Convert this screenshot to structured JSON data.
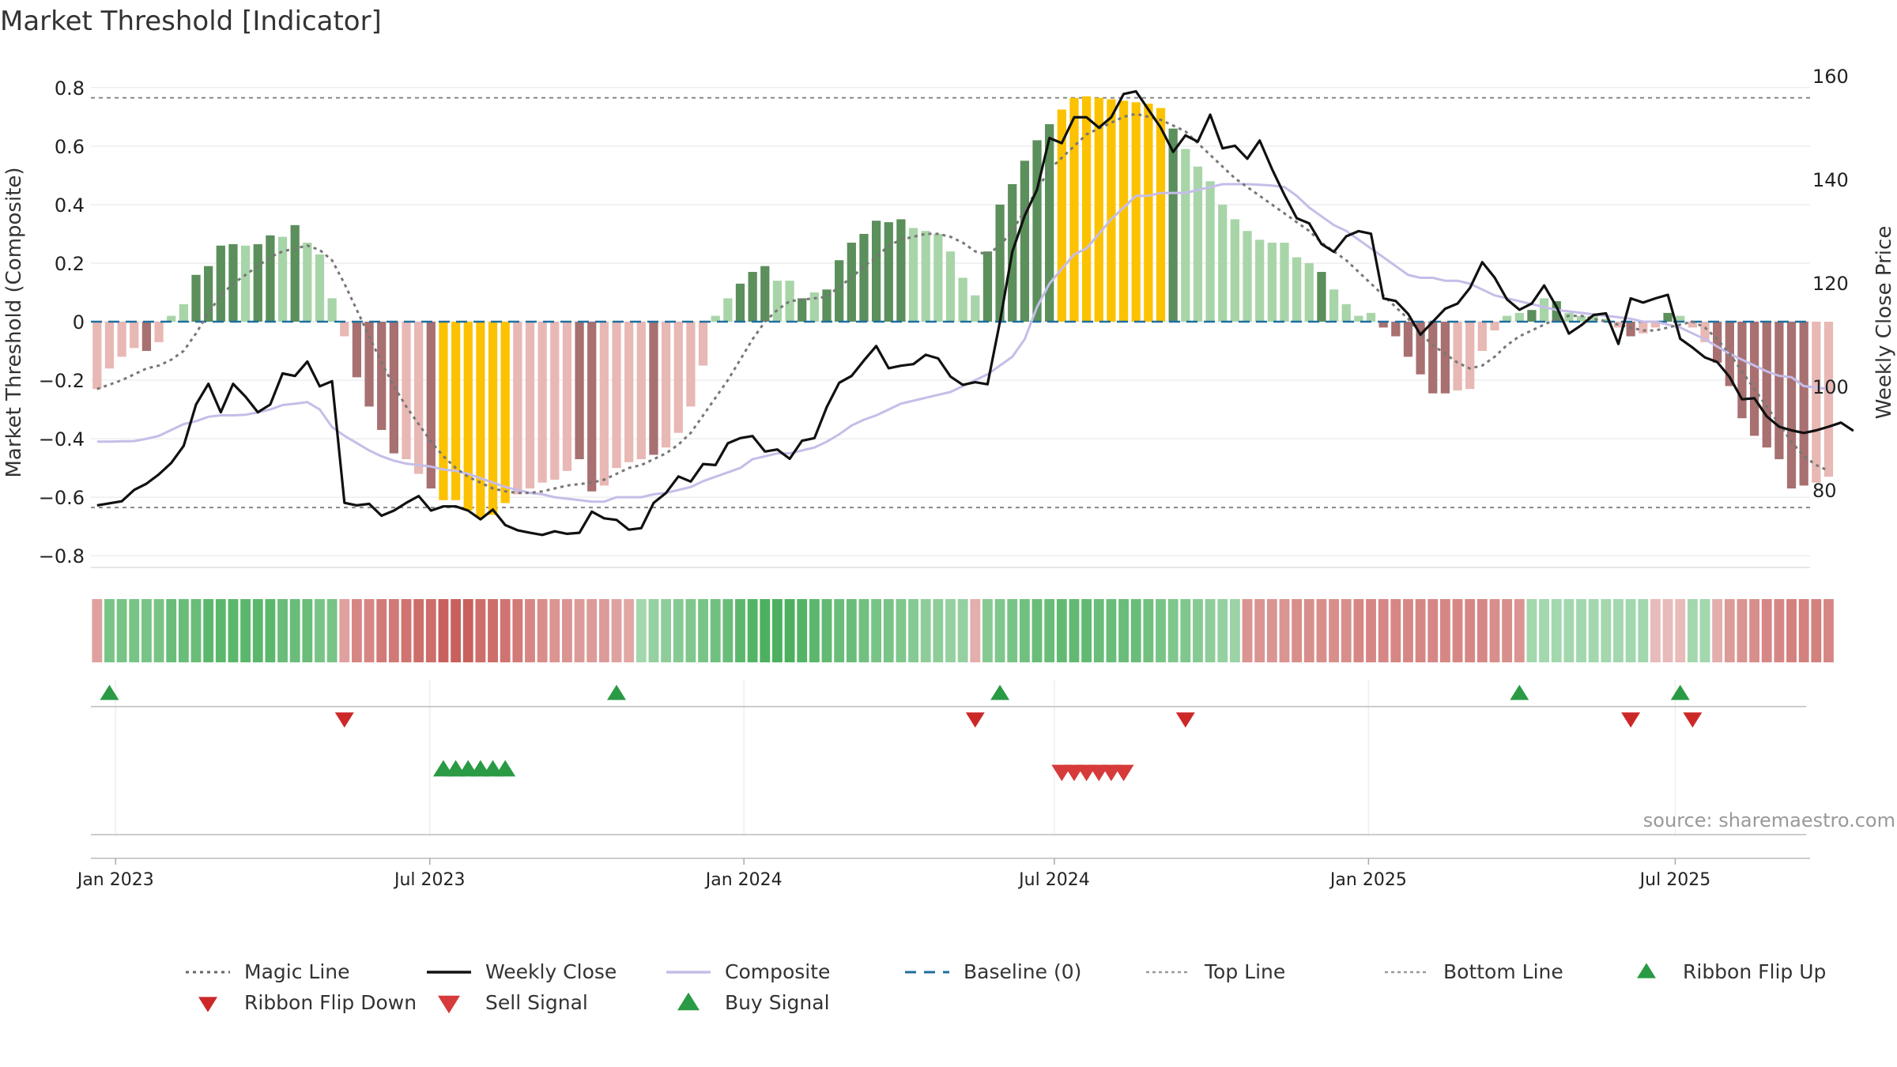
{
  "chart_data": {
    "type": "bar",
    "title": "Market Threshold [Indicator]",
    "ylabel": "Market Threshold (Composite)",
    "y2label": "Weekly Close Price",
    "ylim": [
      -0.84,
      0.84
    ],
    "y2lim": [
      65,
      160
    ],
    "yticks": [
      0.8,
      0.6,
      0.4,
      0.2,
      0,
      -0.2,
      -0.4,
      -0.6,
      -0.8
    ],
    "ytick_labels": [
      "0.8",
      "0.6",
      "0.4",
      "0.2",
      "0",
      "−0.2",
      "−0.4",
      "−0.6",
      "−0.8"
    ],
    "y2ticks": [
      160,
      140,
      120,
      100,
      80
    ],
    "y2tick_labels": [
      "160",
      "140",
      "120",
      "100",
      "80"
    ],
    "x_weeks_total": 139,
    "x_start": "2022-12-16",
    "xticks": [
      {
        "label": "Jan 2023",
        "week": 2
      },
      {
        "label": "Jul 2023",
        "week": 27.4
      },
      {
        "label": "Jan 2024",
        "week": 52.8
      },
      {
        "label": "Jul 2024",
        "week": 77.9
      },
      {
        "label": "Jan 2025",
        "week": 103.3
      },
      {
        "label": "Jul 2025",
        "week": 128.1
      }
    ],
    "top_line": 0.765,
    "bottom_line": -0.635,
    "source": "source: sharemaestro.com",
    "colors": {
      "strong_pos": "#5b8f5b",
      "light_pos": "#a8d5a8",
      "strong_neg": "#a87070",
      "light_neg": "#e8b8b4",
      "extreme": "#fcc200",
      "close": "#111111",
      "composite": "#c5bde8",
      "magic": "#777777",
      "baseline": "#1f6f9f",
      "buy": "#2a9a44",
      "sell": "#d63a3a",
      "flip_up": "#2a9a44",
      "flip_down": "#cc2828"
    },
    "bar_values": [
      -0.23,
      -0.16,
      -0.12,
      -0.09,
      -0.1,
      -0.07,
      0.02,
      0.06,
      0.16,
      0.19,
      0.26,
      0.265,
      0.26,
      0.265,
      0.295,
      0.29,
      0.33,
      0.27,
      0.23,
      0.08,
      -0.05,
      -0.19,
      -0.29,
      -0.37,
      -0.45,
      -0.47,
      -0.52,
      -0.57,
      -0.61,
      -0.61,
      -0.645,
      -0.67,
      -0.66,
      -0.62,
      -0.59,
      -0.57,
      -0.55,
      -0.54,
      -0.51,
      -0.47,
      -0.58,
      -0.56,
      -0.5,
      -0.48,
      -0.47,
      -0.455,
      -0.43,
      -0.38,
      -0.29,
      -0.15,
      0.02,
      0.08,
      0.13,
      0.17,
      0.19,
      0.14,
      0.14,
      0.08,
      0.1,
      0.11,
      0.21,
      0.27,
      0.3,
      0.345,
      0.34,
      0.35,
      0.32,
      0.31,
      0.3,
      0.24,
      0.15,
      0.09,
      0.24,
      0.4,
      0.47,
      0.55,
      0.62,
      0.675,
      0.725,
      0.765,
      0.77,
      0.765,
      0.76,
      0.755,
      0.75,
      0.745,
      0.73,
      0.66,
      0.59,
      0.53,
      0.48,
      0.4,
      0.35,
      0.31,
      0.28,
      0.27,
      0.27,
      0.22,
      0.2,
      0.17,
      0.11,
      0.06,
      0.02,
      0.03,
      -0.02,
      -0.05,
      -0.12,
      -0.18,
      -0.245,
      -0.245,
      -0.235,
      -0.23,
      -0.1,
      -0.03,
      0.02,
      0.03,
      0.04,
      0.08,
      0.07,
      0.03,
      0.02,
      0.02,
      0.01,
      -0.02,
      -0.05,
      -0.04,
      -0.02,
      0.03,
      0.02,
      -0.02,
      -0.07,
      -0.14,
      -0.22,
      -0.33,
      -0.39,
      -0.43,
      -0.47,
      -0.57,
      -0.56,
      -0.55,
      -0.53
    ],
    "bar_tone": [
      0,
      0,
      0,
      0,
      1,
      0,
      0,
      0,
      1,
      1,
      1,
      1,
      0,
      1,
      1,
      0,
      1,
      0,
      0,
      0,
      0,
      1,
      1,
      1,
      1,
      0,
      0,
      1,
      2,
      2,
      2,
      2,
      2,
      2,
      0,
      0,
      0,
      0,
      0,
      1,
      1,
      0,
      0,
      0,
      0,
      1,
      0,
      0,
      0,
      0,
      0,
      0,
      1,
      1,
      1,
      0,
      0,
      1,
      0,
      1,
      1,
      1,
      1,
      1,
      1,
      1,
      0,
      0,
      0,
      0,
      0,
      0,
      1,
      1,
      1,
      1,
      1,
      1,
      2,
      2,
      2,
      2,
      2,
      2,
      2,
      2,
      2,
      1,
      0,
      0,
      0,
      0,
      0,
      0,
      0,
      0,
      0,
      0,
      0,
      1,
      0,
      0,
      0,
      0,
      1,
      1,
      1,
      1,
      1,
      1,
      0,
      0,
      0,
      0,
      0,
      0,
      1,
      0,
      1,
      0,
      0,
      0,
      0,
      0,
      1,
      0,
      0,
      1,
      0,
      0,
      0,
      1,
      1,
      1,
      1,
      1,
      1,
      1,
      1,
      0,
      0,
      0,
      0
    ],
    "close": [
      77,
      77.4,
      77.8,
      80,
      81.2,
      83,
      85.2,
      88.5,
      96.5,
      100.5,
      95,
      100.5,
      98,
      95,
      96.5,
      102.5,
      102,
      104.8,
      100,
      101,
      77.5,
      77,
      77.3,
      75,
      76,
      77.5,
      78.8,
      76,
      76.8,
      76.8,
      76,
      74.3,
      76.2,
      73.2,
      72.2,
      71.7,
      71.3,
      72,
      71.5,
      71.7,
      75.8,
      74.5,
      74.2,
      72.3,
      72.6,
      77.5,
      79.4,
      82.6,
      81.6,
      85,
      84.8,
      89,
      90,
      90.4,
      87.4,
      87.8,
      86,
      89.5,
      90,
      96,
      100.7,
      102,
      105,
      107.8,
      103.5,
      104,
      104.3,
      106.1,
      105.4,
      101.9,
      100.3,
      100.8,
      100.4,
      112.5,
      126,
      133,
      138,
      148,
      147,
      152,
      152,
      150,
      152,
      156.5,
      157,
      153.5,
      150,
      145.3,
      148.5,
      147.3,
      152.5,
      146,
      146.5,
      144,
      147.5,
      142,
      137,
      132.5,
      131.5,
      127.5,
      126,
      129,
      130,
      129.5,
      117,
      116.5,
      114,
      110,
      112.5,
      115,
      116,
      119,
      124,
      121,
      116.8,
      114.8,
      116,
      119.5,
      115.4,
      110.2,
      111.8,
      113.8,
      114.1,
      108.2,
      117,
      116.2,
      117,
      117.7,
      109.2,
      107.5,
      105.6,
      104.7,
      101.8,
      97.5,
      97.7,
      94.2,
      92.2,
      91.5,
      91,
      91.5,
      92.2,
      93,
      91.4
    ],
    "composite": [
      -0.41,
      -0.41,
      -0.409,
      -0.408,
      -0.4,
      -0.39,
      -0.37,
      -0.35,
      -0.34,
      -0.325,
      -0.32,
      -0.32,
      -0.318,
      -0.31,
      -0.3,
      -0.285,
      -0.28,
      -0.275,
      -0.3,
      -0.36,
      -0.39,
      -0.415,
      -0.44,
      -0.46,
      -0.475,
      -0.485,
      -0.49,
      -0.495,
      -0.505,
      -0.51,
      -0.52,
      -0.535,
      -0.55,
      -0.565,
      -0.575,
      -0.585,
      -0.59,
      -0.6,
      -0.605,
      -0.61,
      -0.615,
      -0.615,
      -0.6,
      -0.6,
      -0.6,
      -0.59,
      -0.585,
      -0.575,
      -0.565,
      -0.545,
      -0.53,
      -0.515,
      -0.5,
      -0.47,
      -0.46,
      -0.45,
      -0.45,
      -0.44,
      -0.43,
      -0.41,
      -0.385,
      -0.355,
      -0.335,
      -0.32,
      -0.3,
      -0.28,
      -0.27,
      -0.26,
      -0.25,
      -0.24,
      -0.22,
      -0.2,
      -0.18,
      -0.15,
      -0.12,
      -0.06,
      0.05,
      0.13,
      0.18,
      0.23,
      0.25,
      0.3,
      0.35,
      0.39,
      0.43,
      0.43,
      0.44,
      0.44,
      0.44,
      0.45,
      0.46,
      0.47,
      0.47,
      0.47,
      0.468,
      0.465,
      0.46,
      0.43,
      0.39,
      0.36,
      0.33,
      0.31,
      0.28,
      0.25,
      0.22,
      0.19,
      0.16,
      0.15,
      0.15,
      0.14,
      0.14,
      0.13,
      0.11,
      0.09,
      0.08,
      0.07,
      0.06,
      0.05,
      0.04,
      0.035,
      0.03,
      0.025,
      0.02,
      0.015,
      0.01,
      0.0,
      0.0,
      -0.01,
      -0.02,
      -0.04,
      -0.06,
      -0.085,
      -0.11,
      -0.13,
      -0.15,
      -0.17,
      -0.185,
      -0.19,
      -0.22,
      -0.225,
      -0.23
    ],
    "magic": [
      -0.23,
      -0.215,
      -0.2,
      -0.18,
      -0.16,
      -0.15,
      -0.13,
      -0.1,
      -0.04,
      0.03,
      0.09,
      0.13,
      0.16,
      0.19,
      0.22,
      0.24,
      0.25,
      0.26,
      0.245,
      0.21,
      0.13,
      0.04,
      -0.05,
      -0.14,
      -0.22,
      -0.29,
      -0.35,
      -0.41,
      -0.46,
      -0.5,
      -0.53,
      -0.55,
      -0.57,
      -0.58,
      -0.585,
      -0.585,
      -0.58,
      -0.57,
      -0.56,
      -0.555,
      -0.55,
      -0.54,
      -0.52,
      -0.5,
      -0.49,
      -0.47,
      -0.45,
      -0.42,
      -0.38,
      -0.32,
      -0.26,
      -0.2,
      -0.13,
      -0.06,
      0.0,
      0.04,
      0.07,
      0.075,
      0.08,
      0.085,
      0.12,
      0.15,
      0.19,
      0.22,
      0.26,
      0.28,
      0.29,
      0.3,
      0.3,
      0.29,
      0.27,
      0.24,
      0.23,
      0.26,
      0.31,
      0.38,
      0.45,
      0.52,
      0.56,
      0.6,
      0.64,
      0.66,
      0.68,
      0.7,
      0.71,
      0.7,
      0.69,
      0.67,
      0.65,
      0.61,
      0.57,
      0.53,
      0.49,
      0.46,
      0.43,
      0.4,
      0.37,
      0.34,
      0.31,
      0.27,
      0.24,
      0.21,
      0.17,
      0.13,
      0.09,
      0.05,
      0.01,
      -0.04,
      -0.08,
      -0.11,
      -0.14,
      -0.16,
      -0.15,
      -0.12,
      -0.08,
      -0.05,
      -0.03,
      -0.01,
      0.01,
      0.02,
      0.02,
      0.01,
      0.0,
      -0.01,
      -0.02,
      -0.03,
      -0.03,
      -0.02,
      -0.01,
      0.0,
      -0.02,
      -0.06,
      -0.11,
      -0.17,
      -0.23,
      -0.29,
      -0.35,
      -0.41,
      -0.46,
      -0.49,
      -0.51
    ],
    "ribbon": [
      -0.4,
      0.6,
      0.6,
      0.6,
      0.6,
      0.6,
      0.7,
      0.7,
      0.7,
      0.8,
      0.8,
      0.8,
      0.8,
      0.8,
      0.8,
      0.7,
      0.7,
      0.7,
      0.6,
      0.6,
      -0.4,
      -0.6,
      -0.6,
      -0.7,
      -0.7,
      -0.75,
      -0.8,
      -0.8,
      -0.9,
      -0.9,
      -0.9,
      -0.8,
      -0.8,
      -0.75,
      -0.7,
      -0.6,
      -0.55,
      -0.5,
      -0.5,
      -0.45,
      -0.45,
      -0.45,
      -0.4,
      -0.35,
      0.3,
      0.4,
      0.45,
      0.5,
      0.55,
      0.6,
      0.65,
      0.7,
      0.8,
      0.85,
      0.9,
      0.9,
      0.9,
      0.85,
      0.8,
      0.75,
      0.7,
      0.7,
      0.65,
      0.6,
      0.6,
      0.55,
      0.5,
      0.45,
      0.45,
      0.4,
      0.4,
      -0.3,
      0.5,
      0.55,
      0.6,
      0.65,
      0.7,
      0.7,
      0.75,
      0.75,
      0.75,
      0.7,
      0.7,
      0.7,
      0.7,
      0.65,
      0.6,
      0.55,
      0.55,
      0.5,
      0.45,
      0.4,
      0.35,
      -0.5,
      -0.5,
      -0.5,
      -0.5,
      -0.55,
      -0.55,
      -0.55,
      -0.55,
      -0.55,
      -0.6,
      -0.6,
      -0.6,
      -0.6,
      -0.6,
      -0.6,
      -0.6,
      -0.6,
      -0.6,
      -0.6,
      -0.6,
      -0.55,
      -0.55,
      -0.5,
      0.3,
      0.3,
      0.3,
      0.3,
      0.3,
      0.3,
      0.3,
      0.3,
      0.3,
      0.3,
      -0.2,
      -0.2,
      -0.2,
      0.3,
      0.3,
      -0.3,
      -0.45,
      -0.5,
      -0.55,
      -0.6,
      -0.6,
      -0.65,
      -0.65,
      -0.65,
      -0.6
    ],
    "ribbon_flip_up_weeks": [
      1,
      42,
      73,
      115,
      128
    ],
    "ribbon_flip_down_weeks": [
      20,
      71,
      88,
      124,
      129
    ],
    "buy_signal_weeks": [
      28,
      29,
      30,
      31,
      32,
      33
    ],
    "sell_signal_weeks": [
      78,
      79,
      80,
      81,
      82,
      83
    ],
    "legend": [
      {
        "label": "Magic Line",
        "style": "dotted"
      },
      {
        "label": "Weekly Close",
        "style": "solid-black"
      },
      {
        "label": "Composite",
        "style": "solid-lavender"
      },
      {
        "label": "Baseline (0)",
        "style": "dashed-blue"
      },
      {
        "label": "Top Line",
        "style": "dotted-light"
      },
      {
        "label": "Bottom Line",
        "style": "dotted-light"
      },
      {
        "label": "Ribbon Flip Up",
        "style": "triangle-up"
      },
      {
        "label": "Ribbon Flip Down",
        "style": "triangle-down-red"
      },
      {
        "label": "Sell Signal",
        "style": "triangle-down-bright"
      },
      {
        "label": "Buy Signal",
        "style": "triangle-up-green"
      }
    ]
  }
}
